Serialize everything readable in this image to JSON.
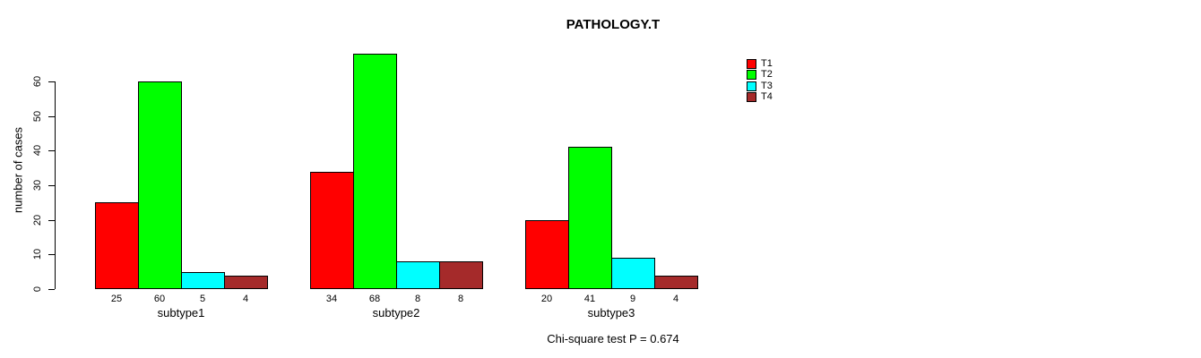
{
  "title": "PATHOLOGY.T",
  "ylabel": "number of cases",
  "footnote": "Chi-square test P = 0.674",
  "chart_data": {
    "type": "bar",
    "grouped": true,
    "categories": [
      "subtype1",
      "subtype2",
      "subtype3"
    ],
    "series": [
      {
        "name": "T1",
        "color": "#FF0000",
        "values": [
          25,
          34,
          20
        ]
      },
      {
        "name": "T2",
        "color": "#00FF00",
        "values": [
          60,
          68,
          41
        ]
      },
      {
        "name": "T3",
        "color": "#00FFFF",
        "values": [
          5,
          8,
          9
        ]
      },
      {
        "name": "T4",
        "color": "#A52A2A",
        "values": [
          4,
          8,
          4
        ]
      }
    ],
    "value_labels_shown": true,
    "ylim": [
      0,
      60
    ],
    "yticks": [
      0,
      10,
      20,
      30,
      40,
      50,
      60
    ],
    "grid": false,
    "legend_position": "top-right"
  }
}
